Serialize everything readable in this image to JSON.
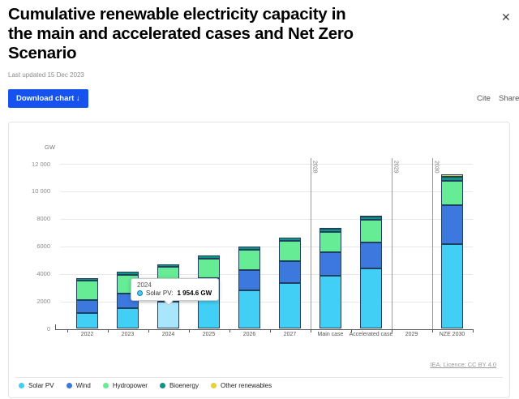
{
  "header": {
    "title_lines": [
      "Cumulative renewable electricity capacity in",
      "the main and accelerated cases and Net Zero",
      "Scenario"
    ],
    "last_updated": "Last updated 15 Dec 2023",
    "download_label": "Download chart ↓",
    "cite_label": "Cite",
    "share_label": "Share",
    "close_icon": "✕"
  },
  "chart_data": {
    "type": "bar",
    "stacked": true,
    "title": "Cumulative renewable electricity capacity in the main and accelerated cases and Net Zero Scenario",
    "unit_label": "GW",
    "categories": [
      "2022",
      "2023",
      "2024",
      "2025",
      "2026",
      "2027",
      "Main case",
      "Accelerated case",
      "2029",
      "NZE 2030"
    ],
    "series": [
      {
        "name": "Solar PV",
        "color": "#41cff5",
        "values": [
          1160,
          1510,
          1954.6,
          2380,
          2820,
          3310,
          3850,
          4390,
          null,
          6160
        ]
      },
      {
        "name": "Wind",
        "color": "#3c78dd",
        "values": [
          930,
          1030,
          1120,
          1280,
          1480,
          1620,
          1730,
          1910,
          null,
          2850
        ]
      },
      {
        "name": "Hydropower",
        "color": "#66ec95",
        "values": [
          1400,
          1410,
          1430,
          1440,
          1475,
          1480,
          1480,
          1650,
          null,
          1735
        ]
      },
      {
        "name": "Bioenergy",
        "color": "#0e9384",
        "values": [
          170,
          200,
          200,
          230,
          220,
          230,
          240,
          230,
          null,
          330
        ]
      },
      {
        "name": "Other renewables",
        "color": "#e8d03c",
        "values": [
          0,
          0,
          0,
          0,
          0,
          0,
          60,
          60,
          null,
          160
        ]
      }
    ],
    "ylim": [
      0,
      12000
    ],
    "yticks": [
      0,
      2000,
      4000,
      6000,
      8000,
      10000,
      12000
    ],
    "ytick_labels": [
      "0",
      "2000",
      "4000",
      "6000",
      "8000",
      "10 000",
      "12 000"
    ],
    "grid": true,
    "legend_position": "bottom",
    "scenario_lines": [
      {
        "label": "2028",
        "after_category_index": 5
      },
      {
        "label": "2029",
        "after_category_index": 7
      },
      {
        "label": "2030",
        "after_category_index": 8
      }
    ],
    "highlight": {
      "category_index": 2,
      "series": "Solar PV",
      "color": "#a9e6fc"
    }
  },
  "tooltip": {
    "title": "2024",
    "series_label": "Solar PV:",
    "value": "1 954.6 GW"
  },
  "footer": {
    "source_label": "IEA. Licence: CC BY 4.0"
  },
  "theme": {
    "accent_blue": "#1652ee"
  }
}
